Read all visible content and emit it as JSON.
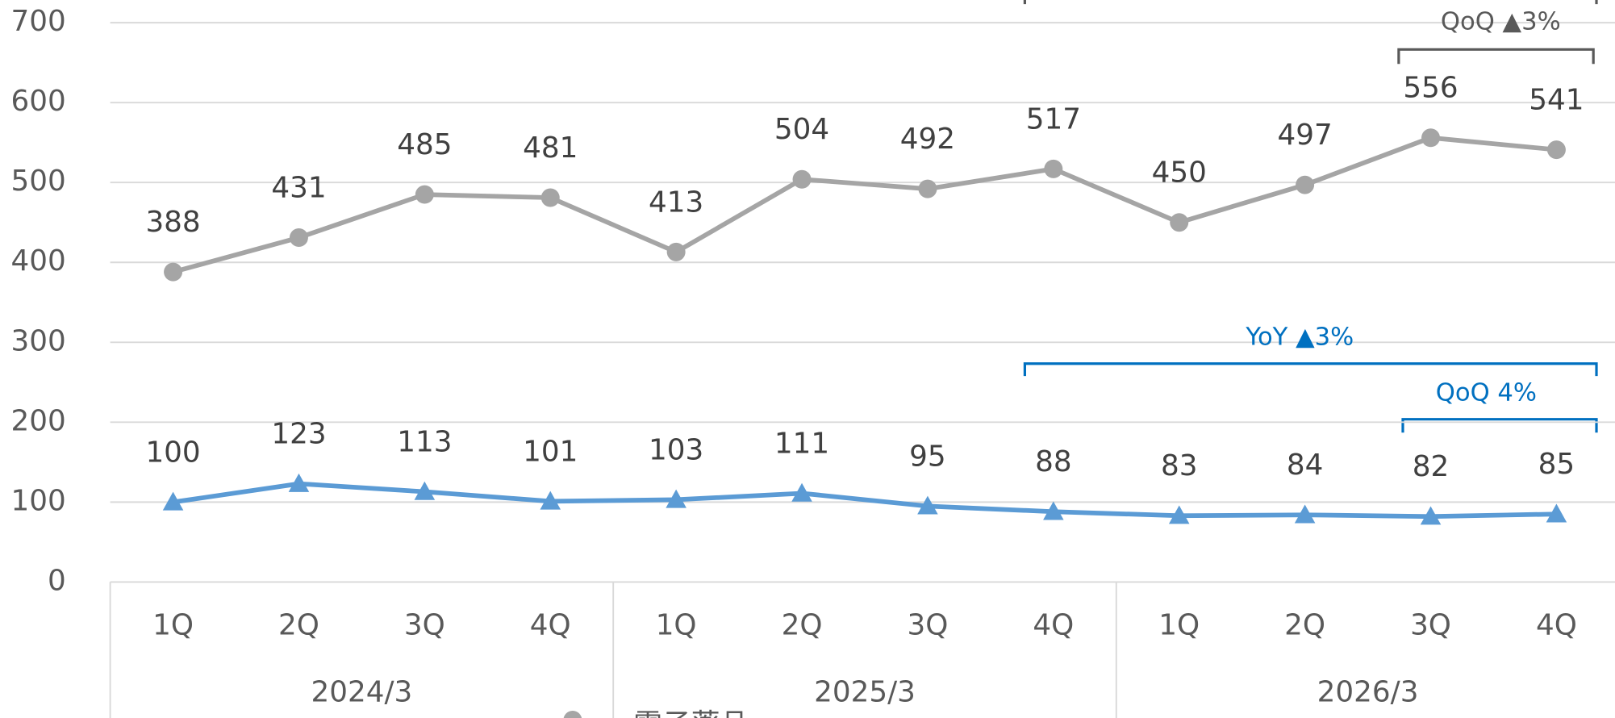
{
  "chart_data": {
    "type": "line",
    "categories": [
      "1Q",
      "2Q",
      "3Q",
      "4Q",
      "1Q",
      "2Q",
      "3Q",
      "4Q",
      "1Q",
      "2Q",
      "3Q",
      "4Q"
    ],
    "groups": [
      "2024/3",
      "2025/3",
      "2026/3"
    ],
    "series": [
      {
        "name": "電子薬品",
        "color": "#a5a5a5",
        "marker": "circle",
        "values": [
          388,
          431,
          485,
          481,
          413,
          504,
          492,
          517,
          450,
          497,
          556,
          541
        ]
      },
      {
        "color": "#5b9bd5",
        "marker": "triangle",
        "values": [
          100,
          123,
          113,
          101,
          103,
          111,
          95,
          88,
          83,
          84,
          82,
          85
        ]
      }
    ],
    "ylim": [
      0,
      700
    ],
    "yticks": [
      0,
      100,
      200,
      300,
      400,
      500,
      600,
      700
    ],
    "grid": true,
    "annotations": [
      {
        "text": "QoQ ▲3%",
        "color": "#595959"
      },
      {
        "text": "YoY ▲3%",
        "color": "#0070c0"
      },
      {
        "text": "QoQ 4%",
        "color": "#0070c0"
      }
    ]
  }
}
